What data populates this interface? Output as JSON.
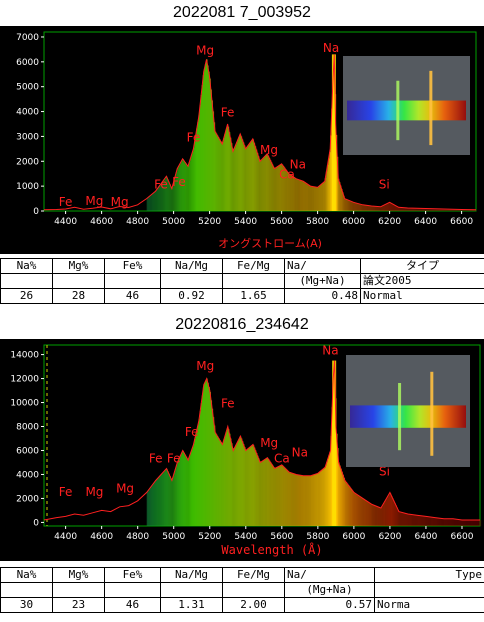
{
  "chart_data": [
    {
      "type": "line",
      "title": "2022081 7_003952",
      "xlabel": "オングストローム(A)",
      "x_ticks": [
        4400,
        4600,
        4800,
        5000,
        5200,
        5400,
        5600,
        5800,
        6000,
        6200,
        6400,
        6600
      ],
      "y_ticks": [
        0,
        1000,
        2000,
        3000,
        4000,
        5000,
        6000,
        7000
      ],
      "xlim": [
        4280,
        6680
      ],
      "ylim": [
        0,
        7200
      ],
      "grid": false,
      "series": [
        {
          "x": [
            4280,
            4350,
            4400,
            4450,
            4500,
            4550,
            4600,
            4650,
            4700,
            4750,
            4800,
            4850,
            4900,
            4930,
            4960,
            4990,
            5020,
            5050,
            5080,
            5110,
            5140,
            5167,
            5183,
            5200,
            5230,
            5270,
            5300,
            5330,
            5370,
            5400,
            5440,
            5480,
            5520,
            5560,
            5600,
            5640,
            5680,
            5720,
            5760,
            5800,
            5840,
            5870,
            5885,
            5893,
            5900,
            5915,
            5950,
            6000,
            6050,
            6100,
            6150,
            6200,
            6250,
            6300,
            6350,
            6400,
            6450,
            6500,
            6550,
            6600,
            6680
          ],
          "y": [
            50,
            60,
            80,
            150,
            70,
            110,
            160,
            90,
            180,
            140,
            250,
            500,
            800,
            1100,
            1400,
            900,
            1700,
            2100,
            1800,
            2500,
            3800,
            5600,
            6100,
            5400,
            3200,
            2700,
            3500,
            2400,
            3100,
            2500,
            2900,
            2000,
            2300,
            1700,
            1900,
            1500,
            1300,
            1200,
            1000,
            950,
            1200,
            2500,
            5200,
            6300,
            3500,
            1300,
            500,
            350,
            250,
            200,
            170,
            350,
            150,
            120,
            110,
            100,
            90,
            80,
            70,
            60,
            50
          ]
        }
      ],
      "annotations": [
        {
          "text": "Fe",
          "x": 4400,
          "y": 200
        },
        {
          "text": "Mg",
          "x": 4560,
          "y": 250
        },
        {
          "text": "Mg",
          "x": 4700,
          "y": 200
        },
        {
          "text": "Fe",
          "x": 4930,
          "y": 900
        },
        {
          "text": "Fe",
          "x": 5030,
          "y": 1000
        },
        {
          "text": "Mg",
          "x": 5175,
          "y": 6300
        },
        {
          "text": "Fe",
          "x": 5300,
          "y": 3800
        },
        {
          "text": "Fe",
          "x": 5110,
          "y": 2800
        },
        {
          "text": "Mg",
          "x": 5530,
          "y": 2300
        },
        {
          "text": "Ca",
          "x": 5630,
          "y": 1300
        },
        {
          "text": "Na",
          "x": 5690,
          "y": 1700
        },
        {
          "text": "Na",
          "x": 5875,
          "y": 6400
        },
        {
          "text": "Si",
          "x": 6170,
          "y": 900
        }
      ]
    },
    {
      "type": "line",
      "title": "20220816_234642",
      "xlabel": "Wavelength (Å)",
      "x_ticks": [
        4400,
        4600,
        4800,
        5000,
        5200,
        5400,
        5600,
        5800,
        6000,
        6200,
        6400,
        6600
      ],
      "y_ticks": [
        0,
        2000,
        4000,
        6000,
        8000,
        10000,
        12000,
        14000
      ],
      "xlim": [
        4280,
        6700
      ],
      "ylim": [
        -300,
        14800
      ],
      "grid": false,
      "series": [
        {
          "x": [
            4280,
            4350,
            4400,
            4450,
            4500,
            4550,
            4600,
            4650,
            4700,
            4750,
            4800,
            4850,
            4900,
            4930,
            4960,
            4990,
            5020,
            5050,
            5080,
            5110,
            5140,
            5167,
            5183,
            5200,
            5230,
            5270,
            5300,
            5330,
            5370,
            5400,
            5440,
            5480,
            5520,
            5560,
            5600,
            5640,
            5680,
            5720,
            5760,
            5800,
            5840,
            5870,
            5885,
            5893,
            5900,
            5915,
            5950,
            6000,
            6050,
            6100,
            6150,
            6200,
            6250,
            6300,
            6350,
            6400,
            6450,
            6500,
            6550,
            6600,
            6700
          ],
          "y": [
            200,
            400,
            500,
            700,
            600,
            800,
            1000,
            900,
            1300,
            1400,
            1800,
            2500,
            3500,
            4000,
            4500,
            3500,
            5000,
            6000,
            5200,
            6500,
            8500,
            11500,
            12000,
            11000,
            7500,
            6500,
            8000,
            6000,
            7200,
            6000,
            6500,
            5000,
            5400,
            4500,
            4800,
            4200,
            4000,
            3900,
            3900,
            4100,
            4600,
            6000,
            12000,
            13500,
            8000,
            5000,
            3500,
            2500,
            2000,
            1500,
            1200,
            2500,
            900,
            700,
            600,
            500,
            400,
            300,
            300,
            200,
            200
          ]
        }
      ],
      "annotations": [
        {
          "text": "Fe",
          "x": 4400,
          "y": 2200
        },
        {
          "text": "Mg",
          "x": 4560,
          "y": 2200
        },
        {
          "text": "Mg",
          "x": 4730,
          "y": 2500
        },
        {
          "text": "Fe",
          "x": 4900,
          "y": 5000
        },
        {
          "text": "Fe",
          "x": 5000,
          "y": 5000
        },
        {
          "text": "Mg",
          "x": 5175,
          "y": 12700
        },
        {
          "text": "Fe",
          "x": 5300,
          "y": 9600
        },
        {
          "text": "Fe",
          "x": 5100,
          "y": 7200
        },
        {
          "text": "Mg",
          "x": 5530,
          "y": 6300
        },
        {
          "text": "Ca",
          "x": 5600,
          "y": 5000
        },
        {
          "text": "Na",
          "x": 5700,
          "y": 5500
        },
        {
          "text": "Na",
          "x": 5870,
          "y": 14000
        },
        {
          "text": "Si",
          "x": 6170,
          "y": 3900
        }
      ]
    }
  ],
  "table1": {
    "headers": [
      "Na%",
      "Mg%",
      "Fe%",
      "Na/Mg",
      "Fe/Mg",
      "Na/",
      "タイプ"
    ],
    "row2": [
      "",
      "",
      "",
      "",
      "",
      "(Mg+Na)",
      "論文2005"
    ],
    "values": [
      "26",
      "28",
      "46",
      "0.92",
      "1.65",
      "0.48",
      "Normal"
    ]
  },
  "table2": {
    "headers": [
      "Na%",
      "Mg%",
      "Fe%",
      "Na/Mg",
      "Fe/Mg",
      "Na/",
      "Type"
    ],
    "row2": [
      "",
      "",
      "",
      "",
      "",
      "(Mg+Na)",
      ""
    ],
    "values": [
      "30",
      "23",
      "46",
      "1.31",
      "2.00",
      "0.57",
      "Norma"
    ]
  },
  "colors": {
    "line": "#ff2020",
    "axis_green": "#00a000",
    "label_red": "#ff2020",
    "na_line": "#ffe000"
  }
}
